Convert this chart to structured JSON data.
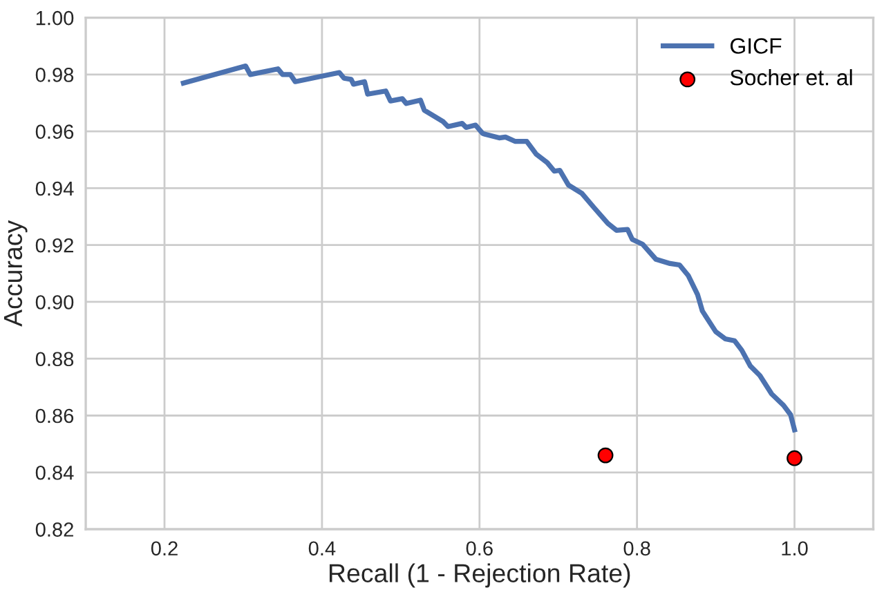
{
  "chart_data": {
    "type": "line",
    "xlabel": "Recall (1 - Rejection Rate)",
    "ylabel": "Accuracy",
    "xlim": [
      0.1,
      1.1
    ],
    "xticks": [
      {
        "value": 0.2,
        "label": "0.2"
      },
      {
        "value": 0.4,
        "label": "0.4"
      },
      {
        "value": 0.6,
        "label": "0.6"
      },
      {
        "value": 0.8,
        "label": "0.8"
      },
      {
        "value": 1.0,
        "label": "1.0"
      }
    ],
    "ylim": [
      0.82,
      1.0
    ],
    "yticks": [
      {
        "value": 0.82,
        "label": "0.82"
      },
      {
        "value": 0.84,
        "label": "0.84"
      },
      {
        "value": 0.86,
        "label": "0.86"
      },
      {
        "value": 0.88,
        "label": "0.88"
      },
      {
        "value": 0.9,
        "label": "0.90"
      },
      {
        "value": 0.92,
        "label": "0.92"
      },
      {
        "value": 0.94,
        "label": "0.94"
      },
      {
        "value": 0.96,
        "label": "0.96"
      },
      {
        "value": 0.98,
        "label": "0.98"
      },
      {
        "value": 1.0,
        "label": "1.00"
      }
    ],
    "grid": true,
    "legend": "top right",
    "series": [
      {
        "name": "GICF",
        "color": "#4c72b0",
        "marker": "none",
        "line_style": "solid",
        "x": [
          0.224,
          0.303,
          0.309,
          0.344,
          0.35,
          0.36,
          0.366,
          0.422,
          0.428,
          0.437,
          0.44,
          0.454,
          0.458,
          0.481,
          0.487,
          0.502,
          0.507,
          0.525,
          0.53,
          0.554,
          0.56,
          0.578,
          0.583,
          0.595,
          0.604,
          0.607,
          0.625,
          0.633,
          0.645,
          0.66,
          0.672,
          0.686,
          0.695,
          0.702,
          0.713,
          0.73,
          0.745,
          0.763,
          0.774,
          0.788,
          0.794,
          0.807,
          0.824,
          0.842,
          0.854,
          0.865,
          0.877,
          0.883,
          0.9,
          0.912,
          0.924,
          0.933,
          0.944,
          0.956,
          0.971,
          0.986,
          0.995,
          1.0
        ],
        "values": [
          0.977,
          0.983,
          0.98,
          0.982,
          0.98,
          0.98,
          0.9775,
          0.9807,
          0.9787,
          0.9783,
          0.9766,
          0.9775,
          0.9731,
          0.9742,
          0.9707,
          0.9715,
          0.9698,
          0.971,
          0.9674,
          0.9634,
          0.9617,
          0.9628,
          0.9614,
          0.9622,
          0.9593,
          0.959,
          0.9577,
          0.958,
          0.9565,
          0.9565,
          0.952,
          0.949,
          0.946,
          0.9463,
          0.9411,
          0.9382,
          0.9333,
          0.9276,
          0.9252,
          0.9255,
          0.922,
          0.9203,
          0.915,
          0.9135,
          0.913,
          0.9093,
          0.9025,
          0.8968,
          0.8895,
          0.887,
          0.8863,
          0.883,
          0.8774,
          0.8741,
          0.8676,
          0.8636,
          0.8603,
          0.855
        ]
      },
      {
        "name": "Socher et. al",
        "type": "scatter",
        "color": "#ff0000",
        "marker": "circle",
        "x": [
          0.76,
          1.0
        ],
        "values": [
          0.846,
          0.845
        ]
      }
    ]
  }
}
